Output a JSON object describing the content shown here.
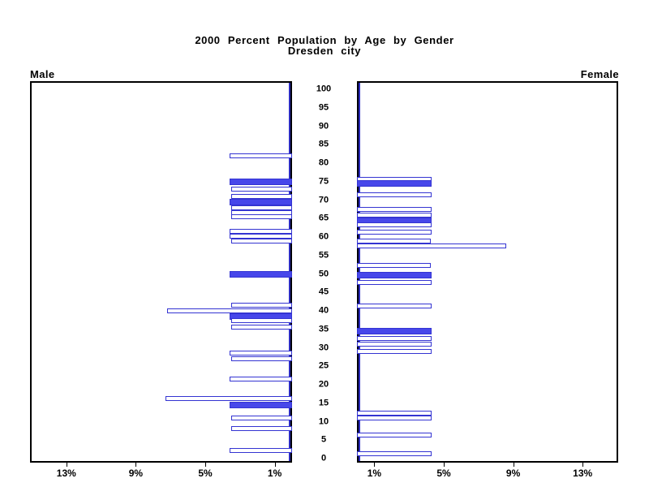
{
  "title": {
    "line1": "2000 Percent Population by Age by Gender",
    "line2": "Dresden city"
  },
  "panel_labels": {
    "male": "Male",
    "female": "Female"
  },
  "colors": {
    "bar_fill": "#4747ea",
    "bar_outline": "#3434d2",
    "axis_line": "#2b2bbf",
    "border": "#000000",
    "background": "#ffffff",
    "text": "#000000"
  },
  "chart_data": {
    "type": "bar",
    "variant": "population-pyramid",
    "title": "2000 Percent Population by Age by Gender",
    "subtitle": "Dresden city",
    "age_axis": {
      "min": 0,
      "max": 100,
      "step": 5,
      "ticks": [
        100,
        95,
        90,
        85,
        80,
        75,
        70,
        65,
        60,
        55,
        50,
        45,
        40,
        35,
        30,
        25,
        20,
        15,
        10,
        5,
        0
      ]
    },
    "pct_axis": {
      "male_tick_labels": [
        "13%",
        "9%",
        "5%",
        "1%"
      ],
      "male_tick_values": [
        13,
        9,
        5,
        1
      ],
      "female_tick_labels": [
        "1%",
        "5%",
        "9%",
        "13%"
      ],
      "female_tick_values": [
        1,
        5,
        9,
        13
      ],
      "max": 15
    },
    "legend": "off",
    "grid": "off",
    "male": {
      "label": "Male",
      "bars": [
        {
          "age": 82,
          "pct": 3.6,
          "filled": false
        },
        {
          "age": 75,
          "pct": 3.6,
          "filled": true
        },
        {
          "age": 73,
          "pct": 3.5,
          "filled": false
        },
        {
          "age": 71,
          "pct": 3.5,
          "filled": false
        },
        {
          "age": 69.5,
          "pct": 3.6,
          "filled": true
        },
        {
          "age": 68,
          "pct": 3.5,
          "filled": false
        },
        {
          "age": 66.7,
          "pct": 3.5,
          "filled": false
        },
        {
          "age": 65.5,
          "pct": 3.5,
          "filled": false
        },
        {
          "age": 61.5,
          "pct": 3.6,
          "filled": false
        },
        {
          "age": 60.2,
          "pct": 3.6,
          "filled": false
        },
        {
          "age": 58.8,
          "pct": 3.5,
          "filled": false
        },
        {
          "age": 50,
          "pct": 3.6,
          "filled": true
        },
        {
          "age": 41.5,
          "pct": 3.5,
          "filled": false
        },
        {
          "age": 40,
          "pct": 7.2,
          "filled": false
        },
        {
          "age": 38.5,
          "pct": 3.6,
          "filled": true
        },
        {
          "age": 37.3,
          "pct": 3.5,
          "filled": false
        },
        {
          "age": 35.5,
          "pct": 3.5,
          "filled": false
        },
        {
          "age": 28.5,
          "pct": 3.6,
          "filled": false
        },
        {
          "age": 27,
          "pct": 3.5,
          "filled": false
        },
        {
          "age": 21.5,
          "pct": 3.6,
          "filled": false
        },
        {
          "age": 16.3,
          "pct": 7.3,
          "filled": false
        },
        {
          "age": 14.5,
          "pct": 3.6,
          "filled": true
        },
        {
          "age": 11,
          "pct": 3.5,
          "filled": false
        },
        {
          "age": 8.2,
          "pct": 3.5,
          "filled": false
        },
        {
          "age": 2.3,
          "pct": 3.6,
          "filled": false
        }
      ]
    },
    "female": {
      "label": "Female",
      "bars": [
        {
          "age": 75.7,
          "pct": 4.3,
          "filled": false
        },
        {
          "age": 74.5,
          "pct": 4.3,
          "filled": true
        },
        {
          "age": 71.5,
          "pct": 4.3,
          "filled": false
        },
        {
          "age": 67.5,
          "pct": 4.3,
          "filled": false
        },
        {
          "age": 66,
          "pct": 4.3,
          "filled": false
        },
        {
          "age": 64.5,
          "pct": 4.3,
          "filled": true
        },
        {
          "age": 63.2,
          "pct": 4.3,
          "filled": false
        },
        {
          "age": 61.4,
          "pct": 4.3,
          "filled": false
        },
        {
          "age": 58.8,
          "pct": 4.25,
          "filled": false
        },
        {
          "age": 57.5,
          "pct": 8.6,
          "filled": false
        },
        {
          "age": 52.4,
          "pct": 4.25,
          "filled": false
        },
        {
          "age": 49.6,
          "pct": 4.3,
          "filled": true
        },
        {
          "age": 47.8,
          "pct": 4.3,
          "filled": false
        },
        {
          "age": 41.4,
          "pct": 4.3,
          "filled": false
        },
        {
          "age": 34.6,
          "pct": 4.3,
          "filled": true
        },
        {
          "age": 32.5,
          "pct": 4.3,
          "filled": false
        },
        {
          "age": 31,
          "pct": 4.3,
          "filled": false
        },
        {
          "age": 29,
          "pct": 4.3,
          "filled": false
        },
        {
          "age": 12.3,
          "pct": 4.3,
          "filled": false
        },
        {
          "age": 11,
          "pct": 4.3,
          "filled": false
        },
        {
          "age": 6.3,
          "pct": 4.3,
          "filled": false
        },
        {
          "age": 1.4,
          "pct": 4.3,
          "filled": false
        }
      ]
    }
  }
}
